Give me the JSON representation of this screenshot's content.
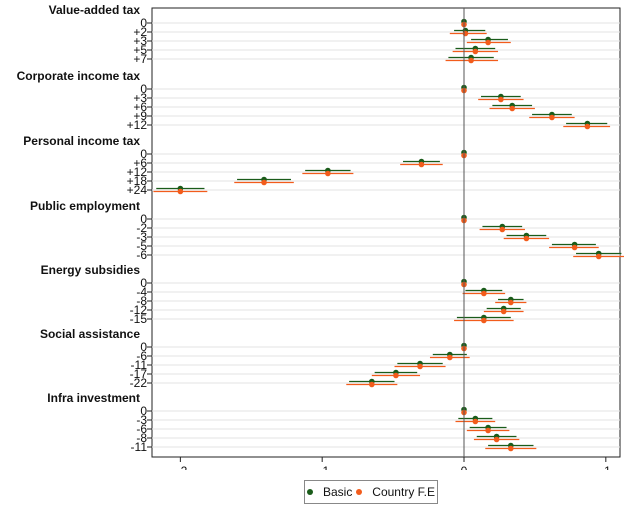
{
  "chart_data": {
    "type": "scatter",
    "orientation": "horizontal",
    "xlim": [
      -0.22,
      0.11
    ],
    "x_ticks": [
      -0.2,
      -0.1,
      0,
      0.1
    ],
    "x_tick_labels": [
      "-.2",
      "-.1",
      "0",
      ".1"
    ],
    "legend_position": "bottom",
    "series": [
      {
        "name": "Basic",
        "color": "#1a5c1a"
      },
      {
        "name": "Country F.E",
        "color": "#f25c1c"
      }
    ],
    "groups": [
      {
        "title": "Value-added tax",
        "rows": [
          {
            "label": "0",
            "basic": 0.0,
            "basic_ci": [
              0.0,
              0.0
            ],
            "fe": 0.0,
            "fe_ci": [
              0.0,
              0.0
            ]
          },
          {
            "label": "+2",
            "basic": 0.001,
            "basic_ci": [
              -0.007,
              0.015
            ],
            "fe": 0.001,
            "fe_ci": [
              -0.01,
              0.016
            ]
          },
          {
            "label": "+3",
            "basic": 0.017,
            "basic_ci": [
              0.005,
              0.031
            ],
            "fe": 0.017,
            "fe_ci": [
              0.002,
              0.033
            ]
          },
          {
            "label": "+5",
            "basic": 0.008,
            "basic_ci": [
              -0.006,
              0.022
            ],
            "fe": 0.008,
            "fe_ci": [
              -0.008,
              0.024
            ]
          },
          {
            "label": "+7",
            "basic": 0.005,
            "basic_ci": [
              -0.011,
              0.021
            ],
            "fe": 0.005,
            "fe_ci": [
              -0.013,
              0.024
            ]
          }
        ]
      },
      {
        "title": "Corporate income tax",
        "rows": [
          {
            "label": "0",
            "basic": 0.0,
            "basic_ci": [
              0.0,
              0.0
            ],
            "fe": 0.0,
            "fe_ci": [
              0.0,
              0.0
            ]
          },
          {
            "label": "+3",
            "basic": 0.026,
            "basic_ci": [
              0.012,
              0.04
            ],
            "fe": 0.026,
            "fe_ci": [
              0.01,
              0.042
            ]
          },
          {
            "label": "+6",
            "basic": 0.034,
            "basic_ci": [
              0.02,
              0.048
            ],
            "fe": 0.034,
            "fe_ci": [
              0.018,
              0.05
            ]
          },
          {
            "label": "+9",
            "basic": 0.062,
            "basic_ci": [
              0.048,
              0.076
            ],
            "fe": 0.062,
            "fe_ci": [
              0.046,
              0.078
            ]
          },
          {
            "label": "+12",
            "basic": 0.087,
            "basic_ci": [
              0.072,
              0.101
            ],
            "fe": 0.087,
            "fe_ci": [
              0.07,
              0.103
            ]
          }
        ]
      },
      {
        "title": "Personal income tax",
        "rows": [
          {
            "label": "0",
            "basic": 0.0,
            "basic_ci": [
              0.0,
              0.0
            ],
            "fe": 0.0,
            "fe_ci": [
              0.0,
              0.0
            ]
          },
          {
            "label": "+6",
            "basic": -0.03,
            "basic_ci": [
              -0.043,
              -0.017
            ],
            "fe": -0.03,
            "fe_ci": [
              -0.045,
              -0.015
            ]
          },
          {
            "label": "+12",
            "basic": -0.096,
            "basic_ci": [
              -0.112,
              -0.08
            ],
            "fe": -0.096,
            "fe_ci": [
              -0.114,
              -0.078
            ]
          },
          {
            "label": "+18",
            "basic": -0.141,
            "basic_ci": [
              -0.16,
              -0.122
            ],
            "fe": -0.141,
            "fe_ci": [
              -0.162,
              -0.12
            ]
          },
          {
            "label": "+24",
            "basic": -0.2,
            "basic_ci": [
              -0.217,
              -0.183
            ],
            "fe": -0.2,
            "fe_ci": [
              -0.219,
              -0.181
            ]
          }
        ]
      },
      {
        "title": "Public employment",
        "rows": [
          {
            "label": "0",
            "basic": 0.0,
            "basic_ci": [
              0.0,
              0.0
            ],
            "fe": 0.0,
            "fe_ci": [
              0.0,
              0.0
            ]
          },
          {
            "label": "-2",
            "basic": 0.027,
            "basic_ci": [
              0.013,
              0.041
            ],
            "fe": 0.027,
            "fe_ci": [
              0.011,
              0.043
            ]
          },
          {
            "label": "-3",
            "basic": 0.044,
            "basic_ci": [
              0.03,
              0.058
            ],
            "fe": 0.044,
            "fe_ci": [
              0.028,
              0.06
            ]
          },
          {
            "label": "-5",
            "basic": 0.078,
            "basic_ci": [
              0.062,
              0.093
            ],
            "fe": 0.078,
            "fe_ci": [
              0.06,
              0.095
            ]
          },
          {
            "label": "-6",
            "basic": 0.095,
            "basic_ci": [
              0.079,
              0.111
            ],
            "fe": 0.095,
            "fe_ci": [
              0.077,
              0.113
            ]
          }
        ]
      },
      {
        "title": "Energy subsidies",
        "rows": [
          {
            "label": "0",
            "basic": 0.0,
            "basic_ci": [
              0.0,
              0.0
            ],
            "fe": 0.0,
            "fe_ci": [
              0.0,
              0.0
            ]
          },
          {
            "label": "-4",
            "basic": 0.014,
            "basic_ci": [
              0.001,
              0.027
            ],
            "fe": 0.014,
            "fe_ci": [
              -0.001,
              0.029
            ]
          },
          {
            "label": "-8",
            "basic": 0.033,
            "basic_ci": [
              0.024,
              0.042
            ],
            "fe": 0.033,
            "fe_ci": [
              0.022,
              0.044
            ]
          },
          {
            "label": "-12",
            "basic": 0.028,
            "basic_ci": [
              0.016,
              0.04
            ],
            "fe": 0.028,
            "fe_ci": [
              0.014,
              0.042
            ]
          },
          {
            "label": "-15",
            "basic": 0.014,
            "basic_ci": [
              -0.005,
              0.033
            ],
            "fe": 0.014,
            "fe_ci": [
              -0.007,
              0.035
            ]
          }
        ]
      },
      {
        "title": "Social assistance",
        "rows": [
          {
            "label": "0",
            "basic": 0.0,
            "basic_ci": [
              0.0,
              0.0
            ],
            "fe": 0.0,
            "fe_ci": [
              0.0,
              0.0
            ]
          },
          {
            "label": "-6",
            "basic": -0.01,
            "basic_ci": [
              -0.022,
              0.002
            ],
            "fe": -0.01,
            "fe_ci": [
              -0.024,
              0.004
            ]
          },
          {
            "label": "-11",
            "basic": -0.031,
            "basic_ci": [
              -0.047,
              -0.015
            ],
            "fe": -0.031,
            "fe_ci": [
              -0.049,
              -0.013
            ]
          },
          {
            "label": "-17",
            "basic": -0.048,
            "basic_ci": [
              -0.063,
              -0.033
            ],
            "fe": -0.048,
            "fe_ci": [
              -0.065,
              -0.031
            ]
          },
          {
            "label": "-22",
            "basic": -0.065,
            "basic_ci": [
              -0.081,
              -0.049
            ],
            "fe": -0.065,
            "fe_ci": [
              -0.083,
              -0.047
            ]
          }
        ]
      },
      {
        "title": "Infra investment",
        "rows": [
          {
            "label": "0",
            "basic": 0.0,
            "basic_ci": [
              0.0,
              0.0
            ],
            "fe": 0.0,
            "fe_ci": [
              0.0,
              0.0
            ]
          },
          {
            "label": "-3",
            "basic": 0.008,
            "basic_ci": [
              -0.004,
              0.02
            ],
            "fe": 0.008,
            "fe_ci": [
              -0.006,
              0.022
            ]
          },
          {
            "label": "-6",
            "basic": 0.017,
            "basic_ci": [
              0.004,
              0.03
            ],
            "fe": 0.017,
            "fe_ci": [
              0.002,
              0.032
            ]
          },
          {
            "label": "-8",
            "basic": 0.023,
            "basic_ci": [
              0.009,
              0.037
            ],
            "fe": 0.023,
            "fe_ci": [
              0.007,
              0.039
            ]
          },
          {
            "label": "-11",
            "basic": 0.033,
            "basic_ci": [
              0.017,
              0.049
            ],
            "fe": 0.033,
            "fe_ci": [
              0.015,
              0.051
            ]
          }
        ]
      }
    ]
  }
}
